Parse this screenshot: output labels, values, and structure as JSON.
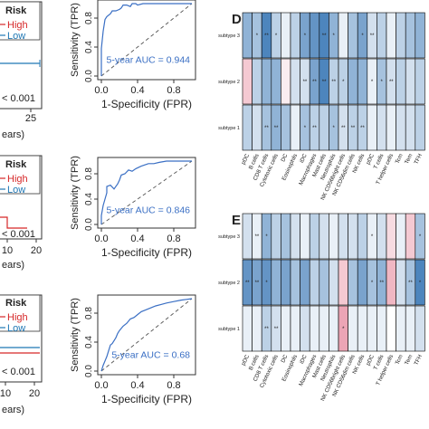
{
  "chart_data": [
    {
      "type": "line",
      "panel": "roc-top",
      "xlabel": "1-Specificity (FPR)",
      "ylabel": "Sensitivity (TPR)",
      "auc_label": "5-year AUC = 0.944",
      "x_ticks": [
        "0.0",
        "0.4",
        "0.8"
      ],
      "y_ticks": [
        "0.0",
        "0.4",
        "0.8"
      ],
      "xlim": [
        0,
        1
      ],
      "ylim": [
        0,
        1
      ],
      "series": [
        {
          "x": [
            0,
            0,
            0.02,
            0.04,
            0.06,
            0.1,
            0.12,
            0.16,
            0.2,
            0.22,
            0.24,
            0.28,
            0.32,
            0.34,
            0.38,
            0.4,
            0.46,
            0.48,
            0.52,
            0.56,
            0.6,
            0.68,
            0.76,
            0.84,
            0.92,
            1.0
          ],
          "y": [
            0,
            0.38,
            0.62,
            0.78,
            0.82,
            0.86,
            0.9,
            0.9,
            0.92,
            0.94,
            0.98,
            0.98,
            0.96,
            1.0,
            1.0,
            0.98,
            1.0,
            1.0,
            1.0,
            1.0,
            1.0,
            1.0,
            1.0,
            1.0,
            1.0,
            1.0
          ]
        }
      ]
    },
    {
      "type": "line",
      "panel": "roc-middle",
      "xlabel": "1-Specificity (FPR)",
      "ylabel": "Sensitivity (TPR)",
      "auc_label": "5-year AUC = 0.846",
      "x_ticks": [
        "0.0",
        "0.4",
        "0.8"
      ],
      "y_ticks": [
        "0.0",
        "0.4",
        "0.8"
      ],
      "xlim": [
        0,
        1
      ],
      "ylim": [
        0,
        1
      ],
      "series": [
        {
          "x": [
            0,
            0,
            0.02,
            0.04,
            0.06,
            0.06,
            0.1,
            0.14,
            0.18,
            0.2,
            0.22,
            0.26,
            0.3,
            0.34,
            0.38,
            0.44,
            0.48,
            0.52,
            0.58,
            0.64,
            0.72,
            0.8,
            0.88,
            0.96,
            1.0
          ],
          "y": [
            0,
            0.14,
            0.3,
            0.4,
            0.5,
            0.6,
            0.62,
            0.56,
            0.64,
            0.7,
            0.78,
            0.8,
            0.86,
            0.84,
            0.88,
            0.92,
            0.94,
            0.96,
            0.96,
            0.98,
            1.0,
            1.0,
            1.0,
            1.0,
            1.0
          ]
        }
      ]
    },
    {
      "type": "line",
      "panel": "roc-bottom",
      "xlabel": "1-Specificity (FPR)",
      "ylabel": "Sensitivity (TPR)",
      "auc_label": "5-year AUC = 0.68",
      "x_ticks": [
        "0.0",
        "0.4",
        "0.8"
      ],
      "y_ticks": [
        "0.0",
        "0.4",
        "0.8"
      ],
      "xlim": [
        0,
        1
      ],
      "ylim": [
        0,
        1
      ],
      "series": [
        {
          "x": [
            0,
            0.02,
            0.04,
            0.06,
            0.08,
            0.1,
            0.12,
            0.14,
            0.16,
            0.18,
            0.2,
            0.24,
            0.28,
            0.32,
            0.36,
            0.4,
            0.44,
            0.48,
            0.52,
            0.56,
            0.6,
            0.66,
            0.72,
            0.8,
            0.88,
            0.94,
            1.0
          ],
          "y": [
            0,
            0.08,
            0.14,
            0.2,
            0.28,
            0.36,
            0.38,
            0.42,
            0.46,
            0.52,
            0.56,
            0.62,
            0.66,
            0.72,
            0.74,
            0.78,
            0.82,
            0.84,
            0.86,
            0.88,
            0.9,
            0.92,
            0.94,
            0.96,
            0.98,
            0.99,
            1.0
          ]
        }
      ]
    },
    {
      "type": "heatmap",
      "panel": "D",
      "rows": [
        "subtype 3",
        "subtype 2",
        "subtype 1"
      ],
      "columns": [
        "pDC",
        "B cells",
        "CD8 T cells",
        "Cytotoxic cells",
        "DC",
        "Eosinophils",
        "iDC",
        "Macrophages",
        "Mast cells",
        "Neutrophils",
        "NK CD56bright cells",
        "NK CD56dim cells",
        "NK cells",
        "pDC",
        "T cells",
        "T helper cells",
        "Tcm",
        "Tem",
        "TFH"
      ],
      "values": [
        [
          0.5,
          0.4,
          0.8,
          0.3,
          0.1,
          0.3,
          0.6,
          0.7,
          0.8,
          0.5,
          0.1,
          0.4,
          0.6,
          0.2,
          0.3,
          0.1,
          0.3,
          0.4,
          0.5
        ],
        [
          -0.3,
          0.3,
          0.5,
          0.5,
          -0.1,
          0.2,
          0.2,
          0.6,
          0.8,
          0.3,
          0.3,
          0.5,
          0.5,
          0.1,
          0.4,
          0.2,
          0.3,
          0.2,
          0.3
        ],
        [
          0.3,
          0.2,
          0.4,
          0.5,
          0.4,
          0.1,
          0.4,
          0.3,
          0.3,
          0.4,
          0.2,
          0.3,
          0.3,
          0.1,
          0.2,
          0.1,
          0.2,
          0.2,
          0.3
        ]
      ],
      "stars": [
        [
          "",
          "*",
          "**",
          "*",
          "",
          "",
          "*",
          "",
          "**",
          "*",
          "",
          "",
          "*",
          "**",
          "",
          "",
          "",
          "",
          ""
        ],
        [
          "",
          "",
          "",
          "",
          "",
          "",
          "**",
          "**",
          "**",
          "**",
          "*",
          "",
          "",
          "*",
          "*",
          "**",
          "",
          "",
          ""
        ],
        [
          "",
          "",
          "**",
          "**",
          "",
          "",
          "*",
          "**",
          "",
          "*",
          "**",
          "**",
          "**",
          "",
          "",
          "",
          "",
          "",
          ""
        ]
      ],
      "colors": {
        "neg": "#d94a6a",
        "pos": "#2166ac"
      }
    },
    {
      "type": "heatmap",
      "panel": "E",
      "rows": [
        "subtype 3",
        "subtype 2",
        "subtype 1"
      ],
      "columns": [
        "pDC",
        "B cells",
        "CD8 T cells",
        "Cytotoxic cells",
        "DC",
        "Eosinophils",
        "iDC",
        "Macrophages",
        "Mast cells",
        "Neutrophils",
        "NK CD56bright cells",
        "NK CD56dim cells",
        "NK cells",
        "pDC",
        "T cells",
        "T helper cells",
        "Tcm",
        "Tem",
        "TFH"
      ],
      "values": [
        [
          0.2,
          0.1,
          0.5,
          0.3,
          0.4,
          0.2,
          0.1,
          0.3,
          0.2,
          0.1,
          0.2,
          0.2,
          0.3,
          0.1,
          0.2,
          -0.2,
          0.1,
          -0.3,
          0.4
        ],
        [
          0.7,
          0.6,
          0.7,
          0.5,
          0.6,
          0.4,
          0.6,
          0.3,
          0.4,
          0.2,
          -0.3,
          0.4,
          0.6,
          0.4,
          0.5,
          -0.4,
          0.2,
          0.4,
          0.8
        ],
        [
          0.1,
          0.1,
          0.3,
          0.2,
          0.1,
          0.1,
          0.2,
          0.1,
          0.1,
          0.1,
          -0.5,
          0.1,
          0.1,
          0.1,
          0.1,
          0.0,
          0.1,
          0.1,
          0.2
        ]
      ],
      "stars": [
        [
          "",
          "**",
          "*",
          "",
          "",
          "",
          "",
          "",
          "",
          "",
          "",
          "",
          "",
          "*",
          "",
          "",
          "",
          "",
          "*"
        ],
        [
          "**",
          "**",
          "*",
          "",
          "",
          "",
          "",
          "",
          "",
          "",
          "",
          "",
          "",
          "*",
          "**",
          "",
          "",
          "**",
          "*"
        ],
        [
          "",
          "",
          "**",
          "**",
          "",
          "",
          "",
          "",
          "",
          "",
          "*",
          "",
          "",
          "",
          "",
          "",
          "",
          "",
          ""
        ]
      ],
      "colors": {
        "neg": "#d94a6a",
        "pos": "#2166ac"
      }
    }
  ],
  "km_panels": [
    {
      "legend_title": "Risk",
      "legend_high": "High",
      "legend_low": "Low",
      "pvalue": "< 0.001",
      "xlabel_fragment": "ears)",
      "x_ticks": [
        "25"
      ]
    },
    {
      "legend_title": "Risk",
      "legend_high": "High",
      "legend_low": "Low",
      "pvalue": "< 0.001",
      "xlabel_fragment": "ears)",
      "x_ticks": [
        "10",
        "20"
      ]
    },
    {
      "legend_title": "Risk",
      "legend_high": "High",
      "legend_low": "Low",
      "pvalue": "< 0.001",
      "xlabel_fragment": "ears)",
      "x_ticks": [
        "10",
        "20"
      ]
    }
  ],
  "panel_letters": {
    "d": "D",
    "e": "E"
  },
  "colors": {
    "high": "#d62728",
    "low": "#1f77b4",
    "roc": "#3a6fc4"
  }
}
